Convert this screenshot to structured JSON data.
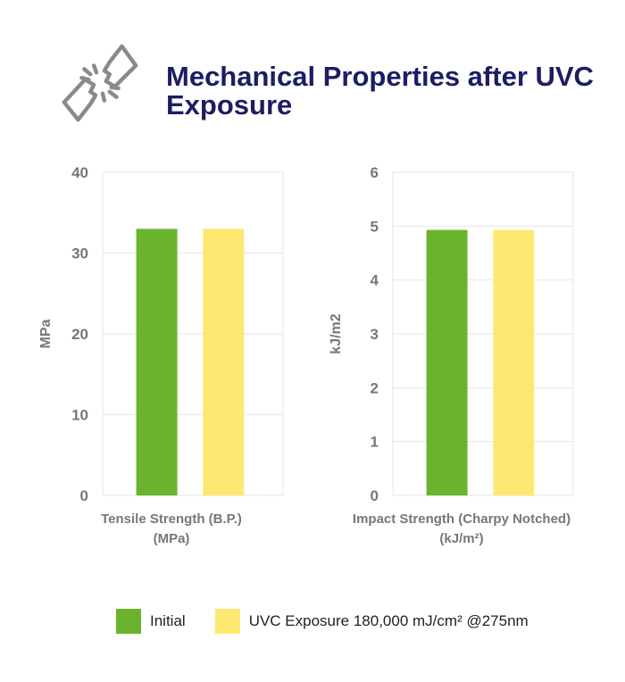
{
  "header": {
    "title": "Mechanical Properties after UVC Exposure",
    "logo_icon": "broken-link-icon"
  },
  "colors": {
    "title": "#1b1e63",
    "initial": "#6ab42d",
    "uvc": "#fde872",
    "axis_text": "#777777",
    "grid": "#e6e6e6"
  },
  "chart_data": [
    {
      "type": "bar",
      "xlabel_line1": "Tensile Strength (B.P.)",
      "xlabel_line2": "(MPa)",
      "ylabel": "MPa",
      "ylim": [
        0,
        40
      ],
      "yticks": [
        "0",
        "10",
        "20",
        "30",
        "40"
      ],
      "grid": true,
      "series": [
        {
          "name": "Initial",
          "values": [
            33
          ]
        },
        {
          "name": "UVC Exposure 180,000 mJ/cm² @275nm",
          "values": [
            33
          ]
        }
      ]
    },
    {
      "type": "bar",
      "xlabel_line1": "Impact Strength (Charpy Notched)",
      "xlabel_line2": "(kJ/m²)",
      "ylabel": "kJ/m2",
      "ylim": [
        0,
        6
      ],
      "yticks": [
        "0",
        "1",
        "2",
        "3",
        "4",
        "5",
        "6"
      ],
      "grid": true,
      "series": [
        {
          "name": "Initial",
          "values": [
            4.93
          ]
        },
        {
          "name": "UVC Exposure 180,000 mJ/cm² @275nm",
          "values": [
            4.93
          ]
        }
      ]
    }
  ],
  "legend": {
    "placement": "bottom",
    "items": [
      {
        "label": "Initial",
        "color": "#6ab42d"
      },
      {
        "label": "UVC Exposure 180,000 mJ/cm² @275nm",
        "color": "#fde872"
      }
    ]
  }
}
